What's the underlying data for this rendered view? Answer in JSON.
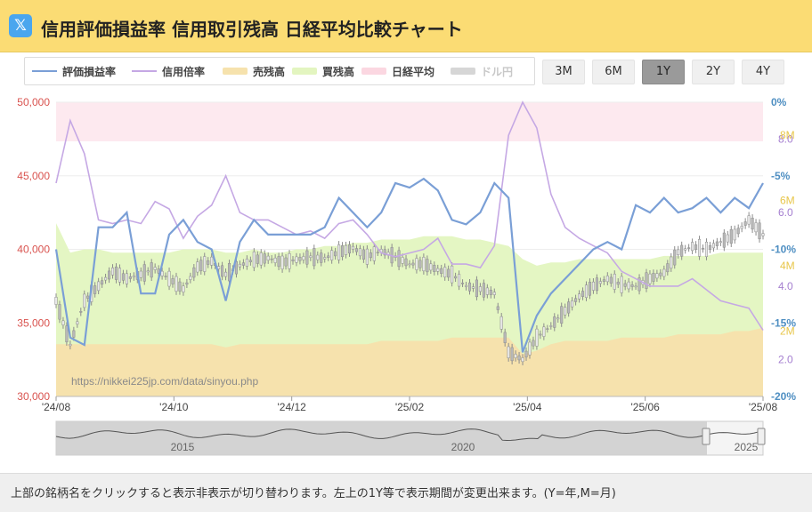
{
  "header": {
    "logo_glyph": "𝕏",
    "title": "信用評価損益率 信用取引残高 日経平均比較チャート"
  },
  "legend": [
    {
      "label": "評価損益率",
      "color": "#7a9fd6",
      "kind": "line",
      "hidden": false
    },
    {
      "label": "信用倍率",
      "color": "#c5a8e4",
      "kind": "line",
      "hidden": false
    },
    {
      "label": "売残高",
      "color": "#f6e2ad",
      "kind": "area",
      "hidden": false
    },
    {
      "label": "買残高",
      "color": "#e3f5c0",
      "kind": "area",
      "hidden": false
    },
    {
      "label": "日経平均",
      "color": "#fbd7e1",
      "kind": "area",
      "hidden": false
    },
    {
      "label": "ドル円",
      "color": "#d6d6d6",
      "kind": "area",
      "hidden": true
    }
  ],
  "range_buttons": [
    {
      "label": "3M",
      "active": false
    },
    {
      "label": "6M",
      "active": false
    },
    {
      "label": "1Y",
      "active": true
    },
    {
      "label": "2Y",
      "active": false
    },
    {
      "label": "4Y",
      "active": false
    }
  ],
  "footer": "上部の銘柄名をクリックすると表示非表示が切り替わります。左上の1Y等で表示期間が変更出来ます。(Y=年,M=月)",
  "watermark": "https://nikkei225jp.com/data/sinyou.php",
  "chart_data": {
    "type": "line",
    "x_ticks": [
      "'24/08",
      "'24/10",
      "'24/12",
      "'25/02",
      "'25/04",
      "'25/06",
      "'25/08"
    ],
    "axes": {
      "nikkei": {
        "ticks": [
          "30,000",
          "35,000",
          "40,000",
          "45,000",
          "50,000"
        ],
        "range": [
          30000,
          50000
        ],
        "color": "#d9534f"
      },
      "pnl_rate": {
        "ticks": [
          "0%",
          "-5%",
          "-10%",
          "-15%",
          "-20%"
        ],
        "range": [
          -20,
          0
        ],
        "color": "#4f8fc2"
      },
      "margin_ratio": {
        "ticks": [
          "2.0",
          "4.0",
          "6.0",
          "8.0"
        ],
        "range": [
          1.0,
          9.0
        ],
        "color": "#a57fd0"
      },
      "balance": {
        "ticks": [
          "2M",
          "4M",
          "6M",
          "8M"
        ],
        "range": [
          0,
          9
        ],
        "color": "#e8c64a"
      }
    },
    "series": [
      {
        "name": "評価損益率",
        "axis": "pnl_rate",
        "values": [
          -10,
          -16,
          -16.5,
          -8.5,
          -8.5,
          -7.5,
          -13,
          -13,
          -9,
          -8,
          -9.5,
          -10,
          -13.5,
          -9.5,
          -8,
          -9,
          -9,
          -9,
          -9,
          -8.5,
          -6.5,
          -7.5,
          -8.5,
          -7.5,
          -5.5,
          -5.8,
          -5.2,
          -6,
          -8,
          -8.3,
          -7.5,
          -5.5,
          -6.5,
          -17,
          -14.5,
          -13,
          -12,
          -11,
          -10,
          -9.5,
          -10,
          -7,
          -7.5,
          -6.5,
          -7.5,
          -7.2,
          -6.5,
          -7.5,
          -6.5,
          -7.2,
          -5.5
        ]
      },
      {
        "name": "信用倍率",
        "axis": "margin_ratio",
        "values": [
          6.8,
          8.5,
          7.6,
          5.8,
          5.7,
          5.8,
          5.7,
          6.3,
          6.1,
          5.3,
          5.9,
          6.2,
          7.0,
          6.0,
          5.8,
          5.8,
          5.6,
          5.4,
          5.5,
          5.3,
          5.7,
          5.8,
          5.4,
          4.9,
          4.8,
          4.9,
          5.0,
          5.3,
          4.6,
          4.6,
          4.5,
          5.1,
          8.1,
          9.0,
          8.3,
          6.5,
          5.6,
          5.3,
          5.1,
          4.9,
          4.4,
          4.2,
          4.0,
          4.0,
          4.0,
          4.2,
          3.9,
          3.6,
          3.5,
          3.4,
          2.8
        ]
      },
      {
        "name": "売残高",
        "axis": "balance",
        "values": [
          1.6,
          1.6,
          1.6,
          1.6,
          1.6,
          1.6,
          1.6,
          1.6,
          1.6,
          1.6,
          1.6,
          1.6,
          1.5,
          1.6,
          1.6,
          1.6,
          1.6,
          1.6,
          1.6,
          1.6,
          1.6,
          1.6,
          1.6,
          1.7,
          1.7,
          1.7,
          1.7,
          1.7,
          1.8,
          1.8,
          1.8,
          1.8,
          1.8,
          1.3,
          1.4,
          1.6,
          1.7,
          1.7,
          1.7,
          1.7,
          1.8,
          1.8,
          1.8,
          1.8,
          1.9,
          1.9,
          1.9,
          1.9,
          2.0,
          2.0,
          2.1
        ]
      },
      {
        "name": "買残高",
        "axis": "balance",
        "values": [
          5.3,
          4.4,
          4.5,
          4.5,
          4.4,
          4.4,
          4.4,
          4.4,
          4.4,
          4.5,
          4.5,
          4.5,
          4.4,
          4.4,
          4.5,
          4.4,
          4.4,
          4.5,
          4.5,
          4.6,
          4.6,
          4.7,
          4.7,
          4.8,
          4.8,
          4.8,
          4.9,
          4.9,
          4.9,
          4.8,
          4.8,
          4.7,
          4.6,
          4.2,
          4.0,
          4.1,
          4.1,
          4.2,
          4.2,
          4.2,
          4.2,
          4.2,
          4.2,
          4.3,
          4.3,
          4.3,
          4.3,
          4.4,
          4.4,
          4.4,
          4.4
        ]
      },
      {
        "name": "日経平均",
        "axis": "nikkei",
        "values": [
          36500,
          33500,
          36500,
          37500,
          38500,
          38000,
          38300,
          38700,
          38000,
          37300,
          38800,
          39200,
          38300,
          38900,
          39300,
          39400,
          39100,
          39300,
          39500,
          39400,
          39800,
          40100,
          39500,
          39900,
          39500,
          39000,
          39000,
          38600,
          38300,
          37500,
          37300,
          37000,
          33000,
          32500,
          34000,
          34800,
          35800,
          36800,
          37500,
          38000,
          37600,
          37500,
          38000,
          38400,
          39800,
          40200,
          40000,
          40500,
          41000,
          42000,
          41000
        ]
      }
    ],
    "navigator": {
      "labels": [
        "2015",
        "2020",
        "2025"
      ]
    }
  }
}
